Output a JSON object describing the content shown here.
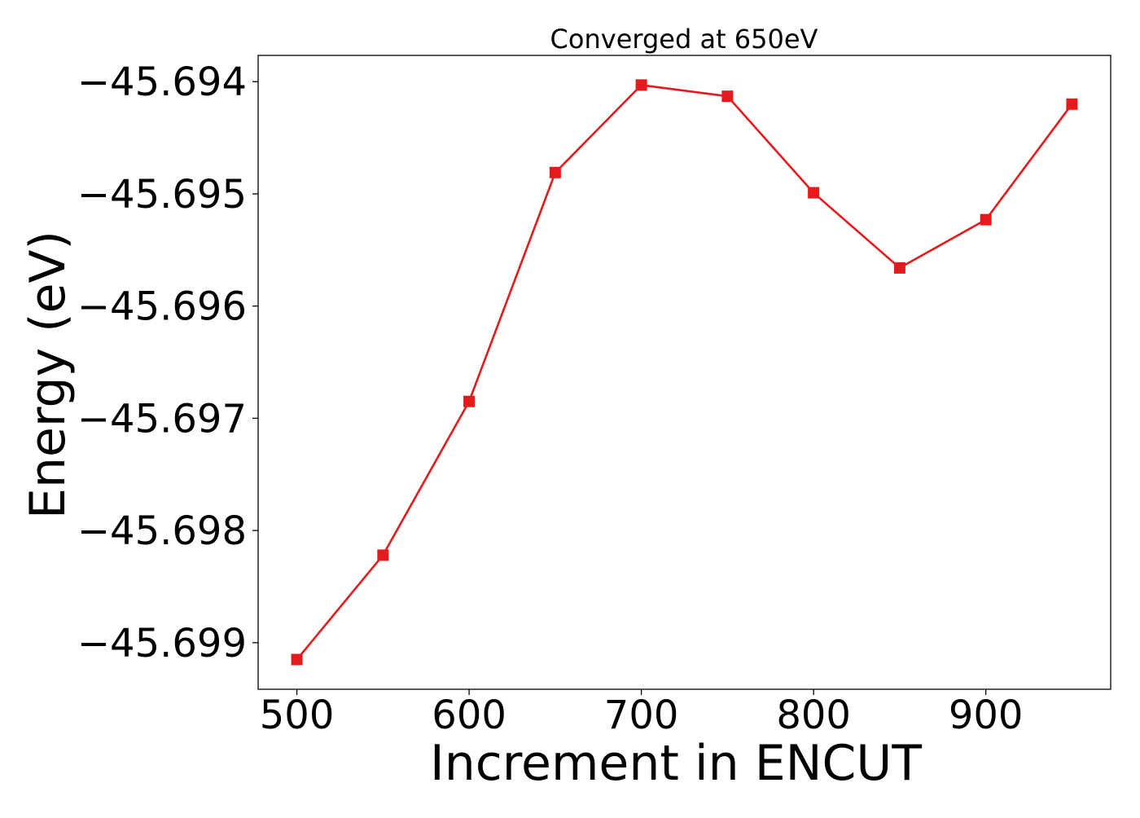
{
  "chart_data": {
    "type": "line",
    "title": "Converged at 650eV",
    "xlabel": "Increment in ENCUT",
    "ylabel": "Energy (eV)",
    "x": [
      500,
      550,
      600,
      650,
      700,
      750,
      800,
      850,
      900,
      950
    ],
    "series": [
      {
        "values": [
          -45.69915,
          -45.69822,
          -45.69685,
          -45.69481,
          -45.69403,
          -45.69413,
          -45.69499,
          -45.69566,
          -45.69523,
          -45.6942
        ],
        "color": "#e41a1c",
        "marker": "square"
      }
    ],
    "xlim": [
      477.5,
      972.5
    ],
    "ylim": [
      -45.699415,
      -45.693766
    ],
    "xticks": [
      500,
      600,
      700,
      800,
      900
    ],
    "xtick_labels": [
      "500",
      "600",
      "700",
      "800",
      "900"
    ],
    "yticks": [
      -45.694,
      -45.695,
      -45.696,
      -45.697,
      -45.698,
      -45.699
    ],
    "ytick_labels": [
      "−45.694",
      "−45.695",
      "−45.696",
      "−45.697",
      "−45.698",
      "−45.699"
    ],
    "grid": false,
    "legend": "none"
  }
}
